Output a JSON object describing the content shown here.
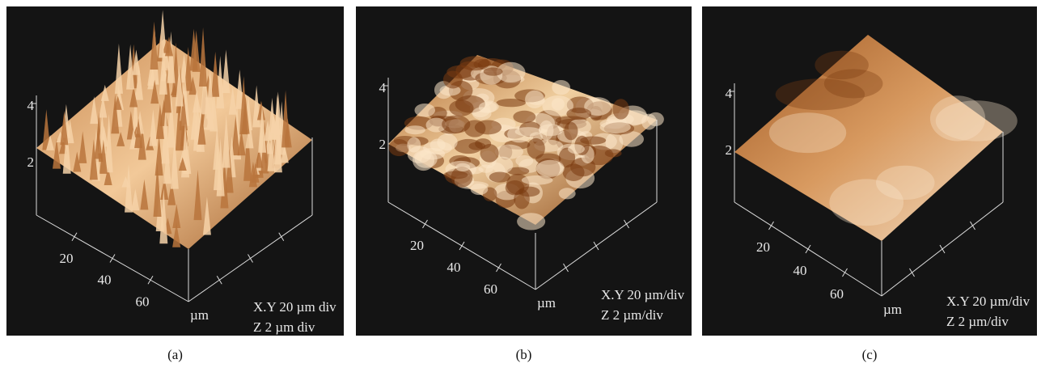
{
  "panels": [
    {
      "caption": "(a)",
      "z_ticks": [
        "4",
        "2"
      ],
      "xy_ticks": [
        "20",
        "40",
        "60"
      ],
      "unit": "µm",
      "scale_xy": "X.Y  20 µm div",
      "scale_z": "Z  2 µm div"
    },
    {
      "caption": "(b)",
      "z_ticks": [
        "4",
        "2"
      ],
      "xy_ticks": [
        "20",
        "40",
        "60"
      ],
      "unit": "µm",
      "scale_xy": "X.Y  20 µm/div",
      "scale_z": "Z  2 µm/div"
    },
    {
      "caption": "(c)",
      "z_ticks": [
        "4",
        "2"
      ],
      "xy_ticks": [
        "20",
        "40",
        "60"
      ],
      "unit": "µm",
      "scale_xy": "X.Y  20 µm/div",
      "scale_z": "Z  2 µm/div"
    }
  ]
}
